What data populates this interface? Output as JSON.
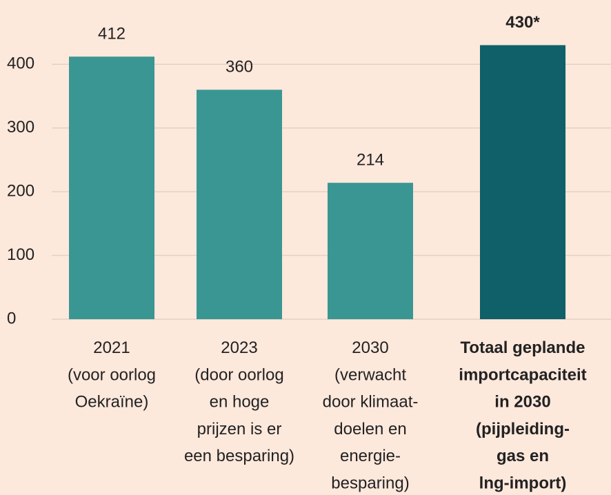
{
  "chart_data": {
    "type": "bar",
    "categories": [
      [
        "2021",
        "(voor oorlog",
        "Oekraïne)"
      ],
      [
        "2023",
        "(door oorlog",
        "en hoge",
        "prijzen is er",
        "een besparing)"
      ],
      [
        "2030",
        "(verwacht",
        "door klimaat-",
        "doelen en",
        "energie-",
        "besparing)"
      ],
      [
        "Totaal geplande",
        "importcapaciteit",
        "in 2030",
        "(pijpleiding-",
        "gas en",
        "lng-import)"
      ]
    ],
    "values": [
      412,
      360,
      214,
      430
    ],
    "value_labels": [
      "412",
      "360",
      "214",
      "430*"
    ],
    "colors": [
      "#3a9693",
      "#3a9693",
      "#3a9693",
      "#0f6068"
    ],
    "highlight_index": 3,
    "ylim": [
      0,
      450
    ],
    "yticks": [
      0,
      100,
      200,
      300,
      400
    ],
    "grid": true
  }
}
